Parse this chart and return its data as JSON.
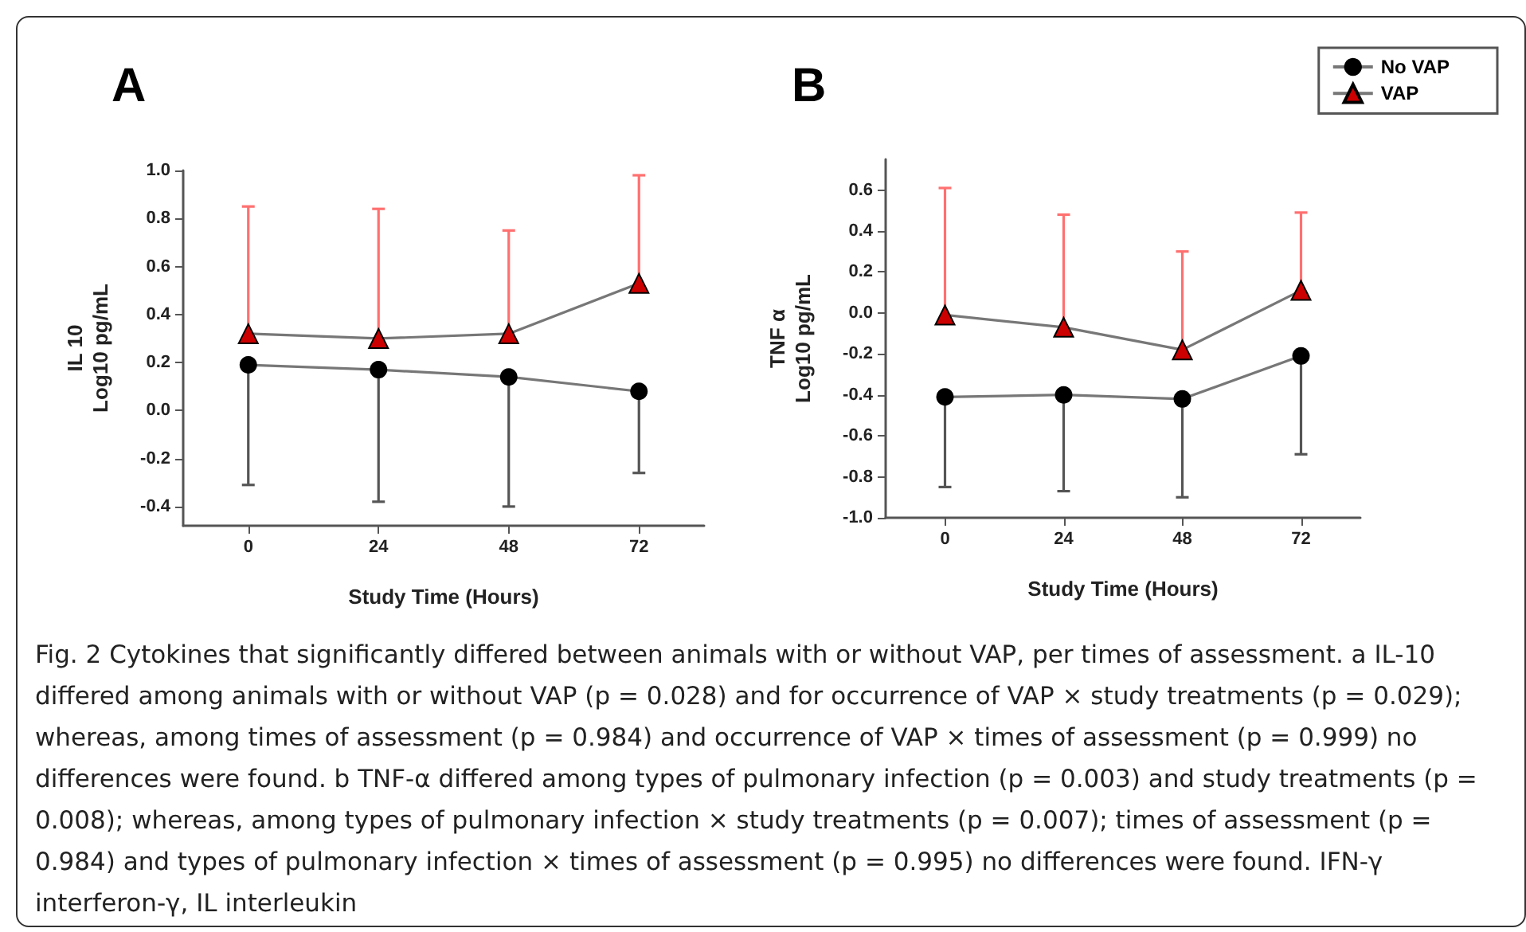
{
  "chart_data": [
    {
      "type": "line",
      "title": "A",
      "ylabel": "IL 10\nLog10 pg/mL",
      "xlabel": "Study Time (Hours)",
      "categories": [
        "0",
        "24",
        "48",
        "72"
      ],
      "ylim": [
        -0.48,
        1.0
      ],
      "yticks": [
        {
          "value": -0.4,
          "label": "-0.4"
        },
        {
          "value": -0.2,
          "label": "-0.2"
        },
        {
          "value": 0,
          "label": "0.0"
        },
        {
          "value": 0.2,
          "label": "0.2"
        },
        {
          "value": 0.4,
          "label": "0.4"
        },
        {
          "value": 0.6,
          "label": "0.6"
        },
        {
          "value": 0.8,
          "label": "0.8"
        },
        {
          "value": 1,
          "label": "1.0"
        }
      ],
      "grid": false,
      "legend": false,
      "series": [
        {
          "color": "#000000",
          "marker": "circle",
          "values": [
            0.19,
            0.17,
            0.14,
            0.08
          ],
          "errors": [
            [
              -0.31,
              0.19
            ],
            [
              -0.38,
              0.17
            ],
            [
              -0.4,
              0.14
            ],
            [
              -0.26,
              0.08
            ]
          ]
        },
        {
          "color": "#cc0000",
          "marker": "triangle",
          "values": [
            0.32,
            0.3,
            0.32,
            0.53
          ],
          "errors": [
            [
              0.32,
              0.85
            ],
            [
              0.3,
              0.84
            ],
            [
              0.32,
              0.75
            ],
            [
              0.53,
              0.98
            ]
          ]
        }
      ],
      "annotations": [
        "Fig. 2 Cytokines that significantly differed between animals with or without VAP, per times of assessment. a IL-10 differed among animals with or without VAP (p = 0.028) and for occurrence of VAP × study treatments (p = 0.029); whereas, among times of assessment (p = 0.984) and occurrence of VAP × times of assessment (p = 0.999) no differences were found. b TNF-α differed among types of pulmonary infection (p = 0.003) and study treatments (p = 0.008); whereas, among types of pulmonary infection × study treatments (p = 0.007); times of assessment (p = 0.984) and types of pulmonary infection × times of assessment (p = 0.995) no differences were found. IFN-γ interferon-γ, IL interleukin"
      ]
    },
    {
      "type": "line",
      "title": "B",
      "ylabel": "TNF α\nLog10 pg/mL",
      "xlabel": "Study Time (Hours)",
      "categories": [
        "0",
        "24",
        "48",
        "72"
      ],
      "ylim": [
        -1.0,
        0.75
      ],
      "yticks": [
        {
          "value": -1,
          "label": "-1.0"
        },
        {
          "value": -0.8,
          "label": "-0.8"
        },
        {
          "value": -0.6,
          "label": "-0.6"
        },
        {
          "value": -0.4,
          "label": "-0.4"
        },
        {
          "value": -0.2,
          "label": "-0.2"
        },
        {
          "value": 0,
          "label": "0.0"
        },
        {
          "value": 0.2,
          "label": "0.2"
        },
        {
          "value": 0.4,
          "label": "0.4"
        },
        {
          "value": 0.6,
          "label": "0.6"
        }
      ],
      "grid": false,
      "legend": "top right",
      "series": [
        {
          "name": "No VAP",
          "color": "#000000",
          "marker": "circle",
          "values": [
            -0.41,
            -0.4,
            -0.42,
            -0.21
          ],
          "errors": [
            [
              -0.85,
              -0.41
            ],
            [
              -0.87,
              -0.4
            ],
            [
              -0.9,
              -0.42
            ],
            [
              -0.69,
              -0.21
            ]
          ]
        },
        {
          "name": "VAP",
          "color": "#cc0000",
          "marker": "triangle",
          "values": [
            -0.01,
            -0.07,
            -0.18,
            0.11
          ],
          "errors": [
            [
              -0.01,
              0.61
            ],
            [
              -0.07,
              0.48
            ],
            [
              -0.18,
              0.3
            ],
            [
              0.11,
              0.49
            ]
          ]
        }
      ]
    }
  ]
}
